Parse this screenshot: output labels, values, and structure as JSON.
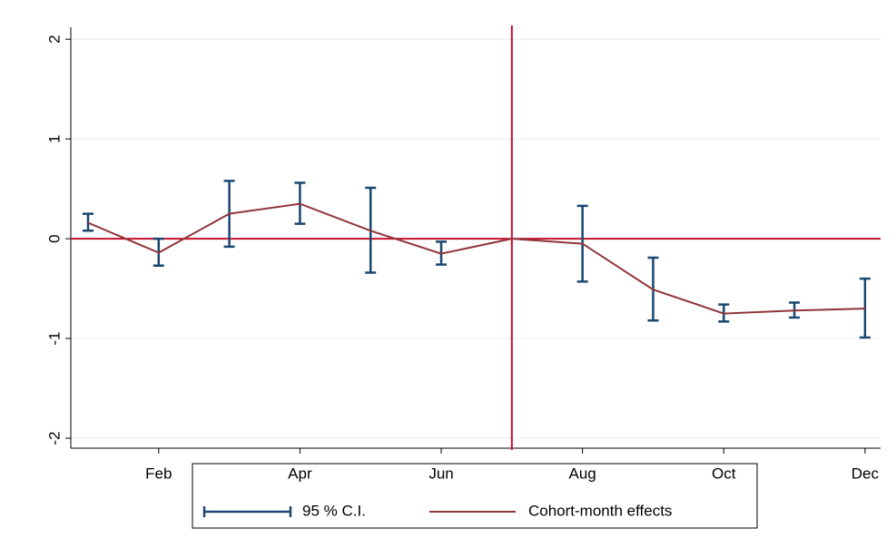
{
  "chart_data": {
    "type": "line",
    "x": [
      1,
      2,
      3,
      4,
      5,
      6,
      7,
      8,
      9,
      10,
      11,
      12
    ],
    "xlim": [
      0.756,
      12.22
    ],
    "xticks": [
      {
        "value": 2,
        "label": "Feb"
      },
      {
        "value": 4,
        "label": "Apr"
      },
      {
        "value": 6,
        "label": "Jun"
      },
      {
        "value": 8,
        "label": "Aug"
      },
      {
        "value": 10,
        "label": "Oct"
      },
      {
        "value": 12,
        "label": "Dec"
      }
    ],
    "ylim": [
      -2.1,
      2.12
    ],
    "yticks": [
      -2,
      -1,
      0,
      1,
      2
    ],
    "grid": true,
    "xline": 7,
    "yline": 0,
    "refline_color": "#c8102e",
    "series": [
      {
        "name": "Cohort-month effects",
        "color": "#90353b",
        "values": [
          0.16,
          -0.14,
          0.25,
          0.35,
          0.08,
          -0.15,
          0,
          -0.05,
          -0.51,
          -0.75,
          -0.72,
          -0.7
        ]
      }
    ],
    "ci": {
      "name": "95 % C.I.",
      "color": "#1a476f",
      "lower": [
        0.08,
        -0.27,
        -0.08,
        0.15,
        -0.34,
        -0.26,
        null,
        -0.43,
        -0.82,
        -0.83,
        -0.79,
        -0.99
      ],
      "upper": [
        0.25,
        0.0,
        0.58,
        0.56,
        0.51,
        -0.03,
        null,
        0.33,
        -0.19,
        -0.66,
        -0.64,
        -0.4
      ]
    }
  }
}
